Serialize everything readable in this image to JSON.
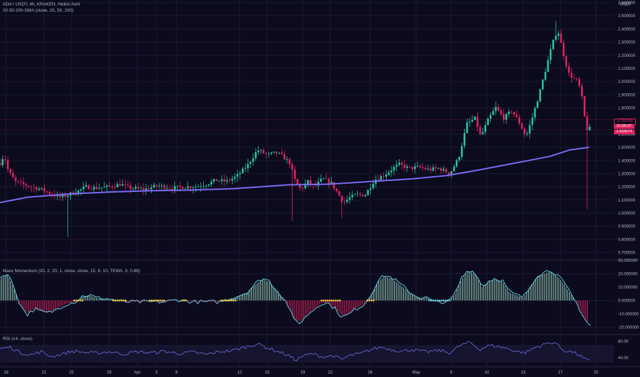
{
  "legend": {
    "symbol": "ADA / USDT, 4h, KRAKEN, Heikin Ashi",
    "sma": "20-50-200-SMA (close, 20, 50, 200)",
    "momentum": "Maxx Momentum (20, 2, 20, 1, close, close, 15, 6, 10, TEMA, 3, 0.86)",
    "rsi": "RSI (14, close)"
  },
  "axis": {
    "currency": "USDT",
    "price_ticks": [
      "2.600000",
      "2.500000",
      "2.400000",
      "2.300000",
      "2.200000",
      "2.100000",
      "2.000000",
      "1.900000",
      "1.800000",
      "1.600000",
      "1.500000",
      "1.400000",
      "1.300000",
      "1.200000",
      "1.100000",
      "1.000000",
      "0.900000",
      "0.800000",
      "0.700000"
    ],
    "momentum_ticks": [
      "30.000000",
      "20.000000",
      "10.000000",
      "0.000000",
      "-10.000000",
      "-20.000000"
    ],
    "rsi_ticks": [
      "80.00",
      "40.00"
    ],
    "time_ticks": [
      "18",
      "22",
      "25",
      "29",
      "Apr",
      "5",
      "8",
      "12",
      "15",
      "19",
      "22",
      "26",
      "May",
      "6",
      "10",
      "13",
      "17",
      "20"
    ]
  },
  "price_labels": {
    "upper": "1.710760",
    "countdown": "01:05:07",
    "last": "1.634074"
  },
  "colors": {
    "background": "#0c0b1e",
    "up": "#26c6a0",
    "down": "#e0245e",
    "sma": "#7b6cf6",
    "momentum_line": "#5fd3e0",
    "rsi_line": "#6e67d9",
    "squeeze": "#f5d142"
  },
  "chart_data": [
    {
      "type": "candlestick",
      "name": "price",
      "ylim": [
        0.65,
        2.62
      ],
      "x": [
        "18",
        "22",
        "25",
        "29",
        "Apr",
        "5",
        "8",
        "12",
        "15",
        "19",
        "22",
        "26",
        "May",
        "6",
        "10",
        "13",
        "17",
        "20"
      ],
      "close_path": [
        [
          0,
          1.38
        ],
        [
          6,
          1.44
        ],
        [
          12,
          1.32
        ],
        [
          22,
          1.24
        ],
        [
          32,
          1.22
        ],
        [
          45,
          1.2
        ],
        [
          60,
          1.18
        ],
        [
          72,
          1.15
        ],
        [
          88,
          1.12
        ],
        [
          100,
          1.14
        ],
        [
          115,
          1.17
        ],
        [
          125,
          1.2
        ],
        [
          140,
          1.19
        ],
        [
          160,
          1.2
        ],
        [
          175,
          1.22
        ],
        [
          190,
          1.19
        ],
        [
          210,
          1.18
        ],
        [
          230,
          1.21
        ],
        [
          250,
          1.19
        ],
        [
          270,
          1.2
        ],
        [
          285,
          1.2
        ],
        [
          300,
          1.22
        ],
        [
          315,
          1.25
        ],
        [
          330,
          1.24
        ],
        [
          345,
          1.28
        ],
        [
          360,
          1.36
        ],
        [
          375,
          1.48
        ],
        [
          390,
          1.44
        ],
        [
          402,
          1.46
        ],
        [
          412,
          1.43
        ],
        [
          422,
          1.38
        ],
        [
          430,
          1.24
        ],
        [
          438,
          1.18
        ],
        [
          448,
          1.24
        ],
        [
          458,
          1.2
        ],
        [
          470,
          1.26
        ],
        [
          482,
          1.23
        ],
        [
          492,
          1.15
        ],
        [
          500,
          1.08
        ],
        [
          510,
          1.12
        ],
        [
          520,
          1.14
        ],
        [
          532,
          1.14
        ],
        [
          545,
          1.25
        ],
        [
          560,
          1.29
        ],
        [
          572,
          1.34
        ],
        [
          582,
          1.37
        ],
        [
          595,
          1.34
        ],
        [
          610,
          1.35
        ],
        [
          625,
          1.33
        ],
        [
          640,
          1.34
        ],
        [
          655,
          1.3
        ],
        [
          668,
          1.42
        ],
        [
          680,
          1.68
        ],
        [
          692,
          1.72
        ],
        [
          700,
          1.58
        ],
        [
          712,
          1.72
        ],
        [
          722,
          1.8
        ],
        [
          734,
          1.72
        ],
        [
          745,
          1.78
        ],
        [
          755,
          1.7
        ],
        [
          766,
          1.58
        ],
        [
          776,
          1.74
        ],
        [
          786,
          1.92
        ],
        [
          796,
          2.12
        ],
        [
          804,
          2.28
        ],
        [
          812,
          2.4
        ],
        [
          820,
          2.22
        ],
        [
          828,
          2.06
        ],
        [
          836,
          2.02
        ],
        [
          842,
          2.0
        ],
        [
          848,
          1.86
        ],
        [
          852,
          1.7
        ],
        [
          856,
          1.62
        ],
        [
          860,
          1.65
        ]
      ]
    },
    {
      "type": "line",
      "name": "200 SMA",
      "values": [
        [
          0,
          1.08
        ],
        [
          40,
          1.12
        ],
        [
          100,
          1.145
        ],
        [
          160,
          1.16
        ],
        [
          220,
          1.17
        ],
        [
          280,
          1.175
        ],
        [
          340,
          1.185
        ],
        [
          380,
          1.2
        ],
        [
          420,
          1.215
        ],
        [
          480,
          1.22
        ],
        [
          540,
          1.24
        ],
        [
          600,
          1.26
        ],
        [
          650,
          1.285
        ],
        [
          700,
          1.33
        ],
        [
          750,
          1.38
        ],
        [
          800,
          1.43
        ],
        [
          830,
          1.48
        ],
        [
          858,
          1.5
        ]
      ]
    },
    {
      "type": "bar",
      "name": "Maxx Momentum",
      "ylim": [
        -25,
        30
      ],
      "values_path": [
        [
          0,
          16
        ],
        [
          10,
          20
        ],
        [
          20,
          10
        ],
        [
          30,
          -4
        ],
        [
          40,
          -10
        ],
        [
          50,
          -6
        ],
        [
          60,
          -8
        ],
        [
          70,
          -9
        ],
        [
          80,
          -7
        ],
        [
          90,
          -4
        ],
        [
          100,
          -2
        ],
        [
          110,
          -1
        ],
        [
          120,
          3
        ],
        [
          130,
          4
        ],
        [
          140,
          2
        ],
        [
          160,
          1
        ],
        [
          180,
          -1
        ],
        [
          200,
          -1
        ],
        [
          220,
          -1
        ],
        [
          240,
          -1
        ],
        [
          260,
          0.5
        ],
        [
          280,
          -1
        ],
        [
          300,
          -1
        ],
        [
          320,
          -1
        ],
        [
          340,
          2
        ],
        [
          360,
          6
        ],
        [
          372,
          12
        ],
        [
          382,
          16
        ],
        [
          392,
          14
        ],
        [
          402,
          8
        ],
        [
          412,
          2
        ],
        [
          420,
          -4
        ],
        [
          428,
          -14
        ],
        [
          438,
          -16
        ],
        [
          448,
          -10
        ],
        [
          458,
          -6
        ],
        [
          468,
          -2
        ],
        [
          478,
          -2
        ],
        [
          488,
          -6
        ],
        [
          498,
          -12
        ],
        [
          508,
          -10
        ],
        [
          518,
          -6
        ],
        [
          530,
          -3
        ],
        [
          540,
          4
        ],
        [
          550,
          14
        ],
        [
          560,
          18
        ],
        [
          572,
          16
        ],
        [
          582,
          12
        ],
        [
          592,
          8
        ],
        [
          602,
          4
        ],
        [
          612,
          2
        ],
        [
          622,
          2
        ],
        [
          632,
          -1
        ],
        [
          642,
          -1
        ],
        [
          652,
          -1
        ],
        [
          662,
          4
        ],
        [
          672,
          16
        ],
        [
          682,
          22
        ],
        [
          692,
          20
        ],
        [
          702,
          10
        ],
        [
          712,
          14
        ],
        [
          722,
          16
        ],
        [
          732,
          14
        ],
        [
          742,
          6
        ],
        [
          752,
          4
        ],
        [
          762,
          2
        ],
        [
          772,
          10
        ],
        [
          782,
          18
        ],
        [
          792,
          20
        ],
        [
          802,
          22
        ],
        [
          812,
          18
        ],
        [
          822,
          12
        ],
        [
          832,
          4
        ],
        [
          842,
          -4
        ],
        [
          850,
          -12
        ],
        [
          858,
          -18
        ]
      ]
    },
    {
      "type": "line",
      "name": "RSI",
      "ylim": [
        20,
        95
      ],
      "values": [
        [
          0,
          62
        ],
        [
          15,
          66
        ],
        [
          30,
          52
        ],
        [
          45,
          47
        ],
        [
          60,
          55
        ],
        [
          75,
          43
        ],
        [
          90,
          49
        ],
        [
          105,
          56
        ],
        [
          120,
          54
        ],
        [
          140,
          51
        ],
        [
          160,
          55
        ],
        [
          180,
          49
        ],
        [
          200,
          55
        ],
        [
          220,
          52
        ],
        [
          240,
          56
        ],
        [
          260,
          50
        ],
        [
          280,
          54
        ],
        [
          300,
          48
        ],
        [
          320,
          55
        ],
        [
          340,
          58
        ],
        [
          360,
          68
        ],
        [
          375,
          74
        ],
        [
          390,
          64
        ],
        [
          405,
          55
        ],
        [
          420,
          46
        ],
        [
          430,
          34
        ],
        [
          440,
          44
        ],
        [
          455,
          50
        ],
        [
          470,
          42
        ],
        [
          485,
          45
        ],
        [
          498,
          36
        ],
        [
          510,
          46
        ],
        [
          525,
          50
        ],
        [
          540,
          60
        ],
        [
          555,
          66
        ],
        [
          570,
          60
        ],
        [
          585,
          56
        ],
        [
          600,
          60
        ],
        [
          620,
          54
        ],
        [
          640,
          58
        ],
        [
          655,
          52
        ],
        [
          670,
          70
        ],
        [
          685,
          78
        ],
        [
          698,
          60
        ],
        [
          712,
          70
        ],
        [
          725,
          68
        ],
        [
          740,
          62
        ],
        [
          752,
          56
        ],
        [
          765,
          52
        ],
        [
          780,
          66
        ],
        [
          795,
          74
        ],
        [
          808,
          78
        ],
        [
          820,
          58
        ],
        [
          832,
          55
        ],
        [
          842,
          48
        ],
        [
          850,
          38
        ],
        [
          858,
          32
        ]
      ]
    }
  ]
}
